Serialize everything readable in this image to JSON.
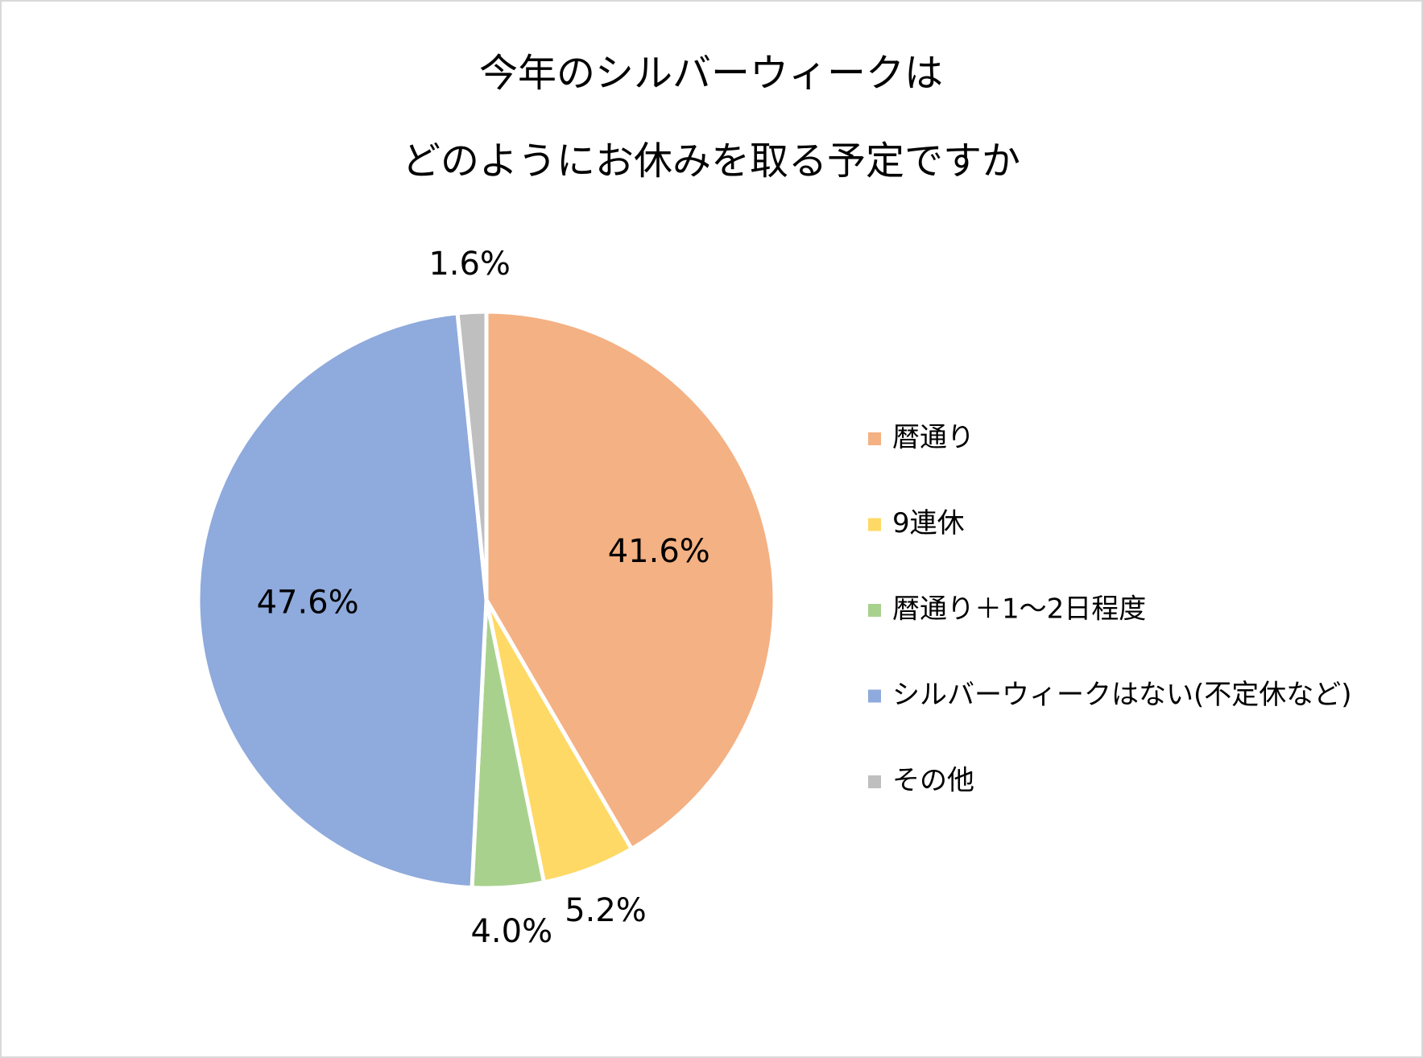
{
  "chart_data": {
    "type": "pie",
    "title": [
      "今年のシルバーウィークは",
      "どのようにお休みを取る予定ですか"
    ],
    "categories": [
      "暦通り",
      "9連休",
      "暦通り＋1～2日程度",
      "シルバーウィークはない(不定休など)",
      "その他"
    ],
    "values": [
      41.6,
      5.2,
      4.0,
      47.6,
      1.6
    ],
    "value_labels": [
      "41.6%",
      "5.2%",
      "4.0%",
      "47.6%",
      "1.6%"
    ],
    "colors": [
      "#f4b183",
      "#ffd966",
      "#a9d18e",
      "#8faadc",
      "#bfbfbf"
    ],
    "legend": "right"
  }
}
